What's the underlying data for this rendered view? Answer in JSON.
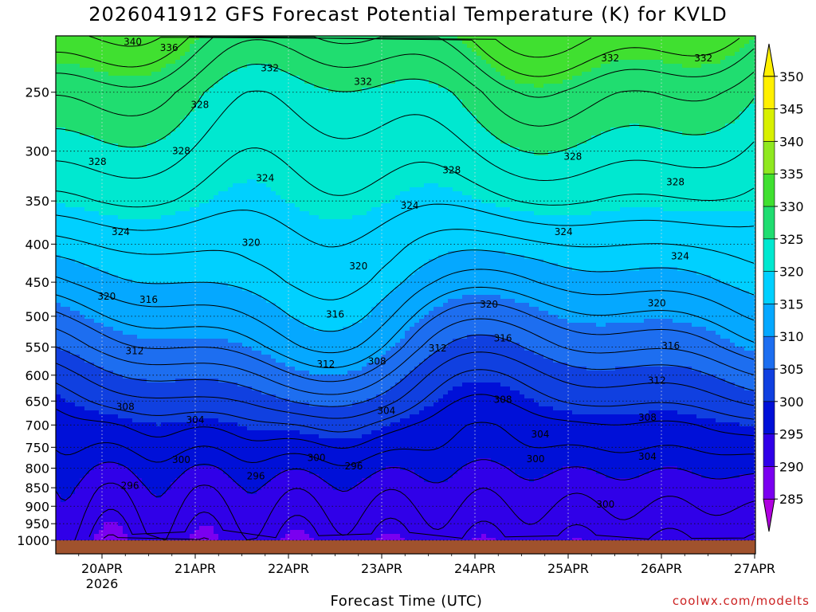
{
  "title": "2026041912 GFS Forecast Potential Temperature (K) for KVLD",
  "xlabel": "Forecast Time (UTC)",
  "credit": "coolwx.com/modelts",
  "chart_data": {
    "type": "heatmap",
    "title": "2026041912 GFS Forecast Potential Temperature (K) for KVLD",
    "xlabel": "Forecast Time (UTC)",
    "ylabel": "",
    "x_ticks": [
      "20APR",
      "21APR",
      "22APR",
      "23APR",
      "24APR",
      "25APR",
      "26APR",
      "27APR"
    ],
    "x_year": "2026",
    "y_ticks": [
      250,
      300,
      350,
      400,
      450,
      500,
      550,
      600,
      650,
      700,
      750,
      800,
      850,
      900,
      950,
      1000
    ],
    "ylim": [
      1000,
      200
    ],
    "y_scale": "log-pressure",
    "colorbar": {
      "levels": [
        285,
        290,
        295,
        300,
        305,
        310,
        315,
        320,
        325,
        330,
        335,
        340,
        345,
        350
      ],
      "colors": [
        "#b000e0",
        "#7a00f0",
        "#3000e8",
        "#0010d8",
        "#1040e0",
        "#1d6ef0",
        "#05a8ff",
        "#00d0ff",
        "#00e8d0",
        "#20dd70",
        "#40e030",
        "#90e820",
        "#d8f000",
        "#fff000"
      ]
    },
    "profile": {
      "pressure": [
        1000,
        950,
        900,
        850,
        800,
        750,
        700,
        650,
        600,
        550,
        500,
        450,
        400,
        350,
        300,
        250,
        210
      ],
      "theta": [
        296,
        297,
        298,
        299,
        300.5,
        302.5,
        304.5,
        307.5,
        310.5,
        314,
        317,
        320,
        322.5,
        325.5,
        328,
        331,
        336
      ]
    },
    "contour_labels": [
      {
        "t": 0.33,
        "p": 214,
        "v": "340"
      },
      {
        "t": 0.72,
        "p": 218,
        "v": "336"
      },
      {
        "t": 1.8,
        "p": 232,
        "v": "332"
      },
      {
        "t": 1.05,
        "p": 260,
        "v": "328"
      },
      {
        "t": 2.8,
        "p": 242,
        "v": "332"
      },
      {
        "t": 5.45,
        "p": 225,
        "v": "332"
      },
      {
        "t": 6.45,
        "p": 225,
        "v": "332"
      },
      {
        "t": -0.05,
        "p": 310,
        "v": "328"
      },
      {
        "t": 0.85,
        "p": 300,
        "v": "328"
      },
      {
        "t": 1.75,
        "p": 326,
        "v": "324"
      },
      {
        "t": 3.75,
        "p": 318,
        "v": "328"
      },
      {
        "t": 5.05,
        "p": 305,
        "v": "328"
      },
      {
        "t": 6.15,
        "p": 330,
        "v": "328"
      },
      {
        "t": 0.2,
        "p": 385,
        "v": "324"
      },
      {
        "t": 3.3,
        "p": 355,
        "v": "324"
      },
      {
        "t": 4.95,
        "p": 385,
        "v": "324"
      },
      {
        "t": 6.2,
        "p": 415,
        "v": "324"
      },
      {
        "t": 1.6,
        "p": 398,
        "v": "320"
      },
      {
        "t": 2.75,
        "p": 428,
        "v": "320"
      },
      {
        "t": 4.15,
        "p": 482,
        "v": "320"
      },
      {
        "t": 5.95,
        "p": 480,
        "v": "320"
      },
      {
        "t": 0.05,
        "p": 470,
        "v": "320"
      },
      {
        "t": 0.5,
        "p": 475,
        "v": "316"
      },
      {
        "t": 2.5,
        "p": 497,
        "v": "316"
      },
      {
        "t": 4.3,
        "p": 535,
        "v": "316"
      },
      {
        "t": 6.1,
        "p": 548,
        "v": "316"
      },
      {
        "t": 0.35,
        "p": 557,
        "v": "312"
      },
      {
        "t": 2.4,
        "p": 580,
        "v": "312"
      },
      {
        "t": 3.6,
        "p": 552,
        "v": "312"
      },
      {
        "t": 5.95,
        "p": 610,
        "v": "312"
      },
      {
        "t": 2.95,
        "p": 575,
        "v": "308"
      },
      {
        "t": 0.25,
        "p": 662,
        "v": "308"
      },
      {
        "t": 4.3,
        "p": 647,
        "v": "308"
      },
      {
        "t": 5.85,
        "p": 684,
        "v": "308"
      },
      {
        "t": 1.0,
        "p": 689,
        "v": "304"
      },
      {
        "t": 3.05,
        "p": 670,
        "v": "304"
      },
      {
        "t": 4.7,
        "p": 720,
        "v": "304"
      },
      {
        "t": 5.85,
        "p": 772,
        "v": "304"
      },
      {
        "t": 0.85,
        "p": 780,
        "v": "300"
      },
      {
        "t": 2.3,
        "p": 775,
        "v": "300"
      },
      {
        "t": 4.65,
        "p": 778,
        "v": "300"
      },
      {
        "t": 5.4,
        "p": 895,
        "v": "300"
      },
      {
        "t": 0.3,
        "p": 845,
        "v": "296"
      },
      {
        "t": 1.65,
        "p": 820,
        "v": "296"
      },
      {
        "t": 2.7,
        "p": 795,
        "v": "296"
      }
    ]
  }
}
